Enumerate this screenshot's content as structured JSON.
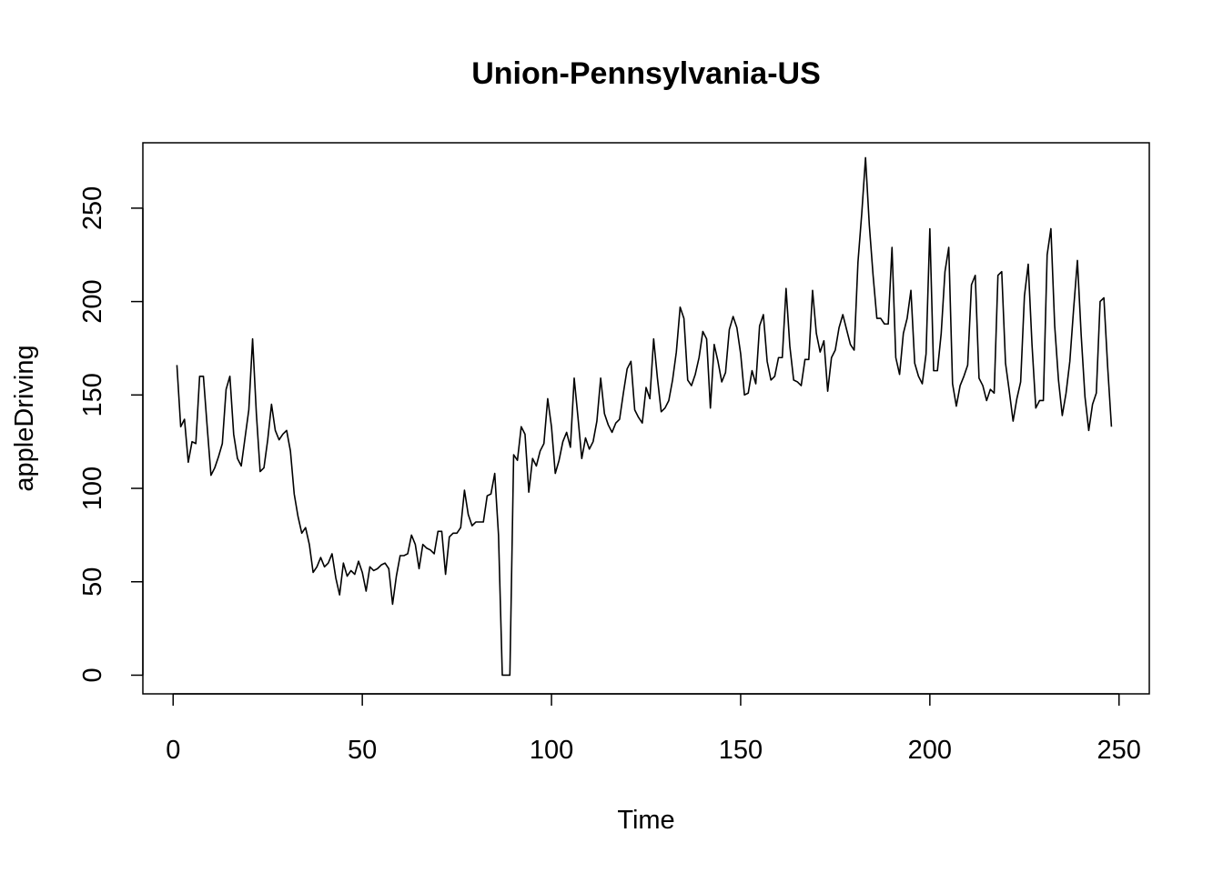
{
  "chart_data": {
    "type": "line",
    "title": "Union-Pennsylvania-US",
    "xlabel": "Time",
    "ylabel": "appleDriving",
    "xlim": [
      -8,
      258
    ],
    "ylim": [
      -10,
      285
    ],
    "x_ticks": [
      0,
      50,
      100,
      150,
      200,
      250
    ],
    "y_ticks": [
      0,
      50,
      100,
      150,
      200,
      250
    ],
    "x_tick_labels": [
      "0",
      "50",
      "100",
      "150",
      "200",
      "250"
    ],
    "y_tick_labels": [
      "0",
      "50",
      "100",
      "150",
      "200",
      "250"
    ],
    "grid": false,
    "legend": "none",
    "line_color": "#000000",
    "series": [
      {
        "x_start": 1,
        "values": [
          166,
          133,
          137,
          114,
          125,
          124,
          160,
          160,
          133,
          107,
          111,
          117,
          124,
          153,
          160,
          129,
          116,
          112,
          127,
          142,
          180,
          140,
          109,
          111,
          126,
          145,
          131,
          126,
          129,
          131,
          120,
          97,
          85,
          76,
          79,
          70,
          55,
          58,
          63,
          58,
          60,
          65,
          52,
          43,
          60,
          53,
          56,
          54,
          61,
          55,
          45,
          58,
          56,
          57,
          59,
          60,
          57,
          38,
          53,
          64,
          64,
          65,
          75,
          70,
          57,
          70,
          68,
          67,
          65,
          77,
          77,
          54,
          74,
          76,
          76,
          79,
          99,
          86,
          80,
          82,
          82,
          82,
          96,
          97,
          108,
          75,
          0,
          0,
          0,
          118,
          115,
          133,
          129,
          98,
          116,
          112,
          120,
          124,
          148,
          133,
          108,
          115,
          125,
          130,
          122,
          159,
          138,
          116,
          127,
          121,
          125,
          136,
          159,
          140,
          134,
          130,
          135,
          137,
          151,
          164,
          168,
          142,
          138,
          135,
          154,
          148,
          180,
          159,
          141,
          143,
          147,
          158,
          173,
          197,
          191,
          158,
          155,
          161,
          170,
          184,
          180,
          143,
          177,
          168,
          157,
          162,
          185,
          192,
          186,
          172,
          150,
          151,
          163,
          156,
          187,
          193,
          168,
          158,
          160,
          170,
          170,
          207,
          176,
          158,
          157,
          155,
          169,
          169,
          206,
          183,
          173,
          179,
          152,
          170,
          174,
          186,
          193,
          185,
          177,
          174,
          221,
          247,
          277,
          241,
          214,
          191,
          191,
          188,
          188,
          229,
          170,
          161,
          183,
          191,
          206,
          167,
          160,
          156,
          172,
          239,
          163,
          163,
          183,
          216,
          229,
          156,
          144,
          155,
          160,
          166,
          209,
          214,
          159,
          155,
          147,
          153,
          151,
          214,
          216,
          167,
          152,
          136,
          148,
          157,
          203,
          220,
          177,
          143,
          147,
          147,
          225,
          239,
          187,
          158,
          139,
          151,
          168,
          196,
          222,
          182,
          149,
          131,
          145,
          151,
          200,
          202,
          165,
          133
        ]
      }
    ]
  }
}
